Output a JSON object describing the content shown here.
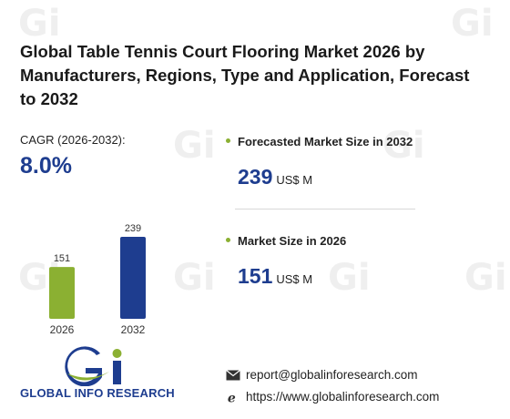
{
  "title": "Global Table Tennis Court Flooring Market 2026 by Manufacturers, Regions, Type and Application, Forecast to 2032",
  "cagr": {
    "label": "CAGR (2026-2032):",
    "value": "8.0%"
  },
  "chart_data": {
    "type": "bar",
    "categories": [
      "2026",
      "2032"
    ],
    "values": [
      151,
      239
    ],
    "data_labels": [
      "151",
      "239"
    ],
    "colors": [
      "#8bb032",
      "#1e3d8f"
    ],
    "title": "",
    "xlabel": "",
    "ylabel": "",
    "ylim": [
      0,
      239
    ]
  },
  "forecast": {
    "label": "Forecasted Market Size in 2032",
    "value": "239",
    "unit": "US$ M"
  },
  "current": {
    "label": "Market Size in 2026",
    "value": "151",
    "unit": "US$ M"
  },
  "logo": {
    "text": "GLOBAL INFO RESEARCH"
  },
  "contact": {
    "email": "report@globalinforesearch.com",
    "website": "https://www.globalinforesearch.com"
  },
  "colors": {
    "accent_blue": "#1e3d8f",
    "accent_green": "#8bb032"
  },
  "icons": {
    "email": "envelope-icon",
    "website": "browser-e-icon",
    "bullet": "green-dot-icon"
  }
}
